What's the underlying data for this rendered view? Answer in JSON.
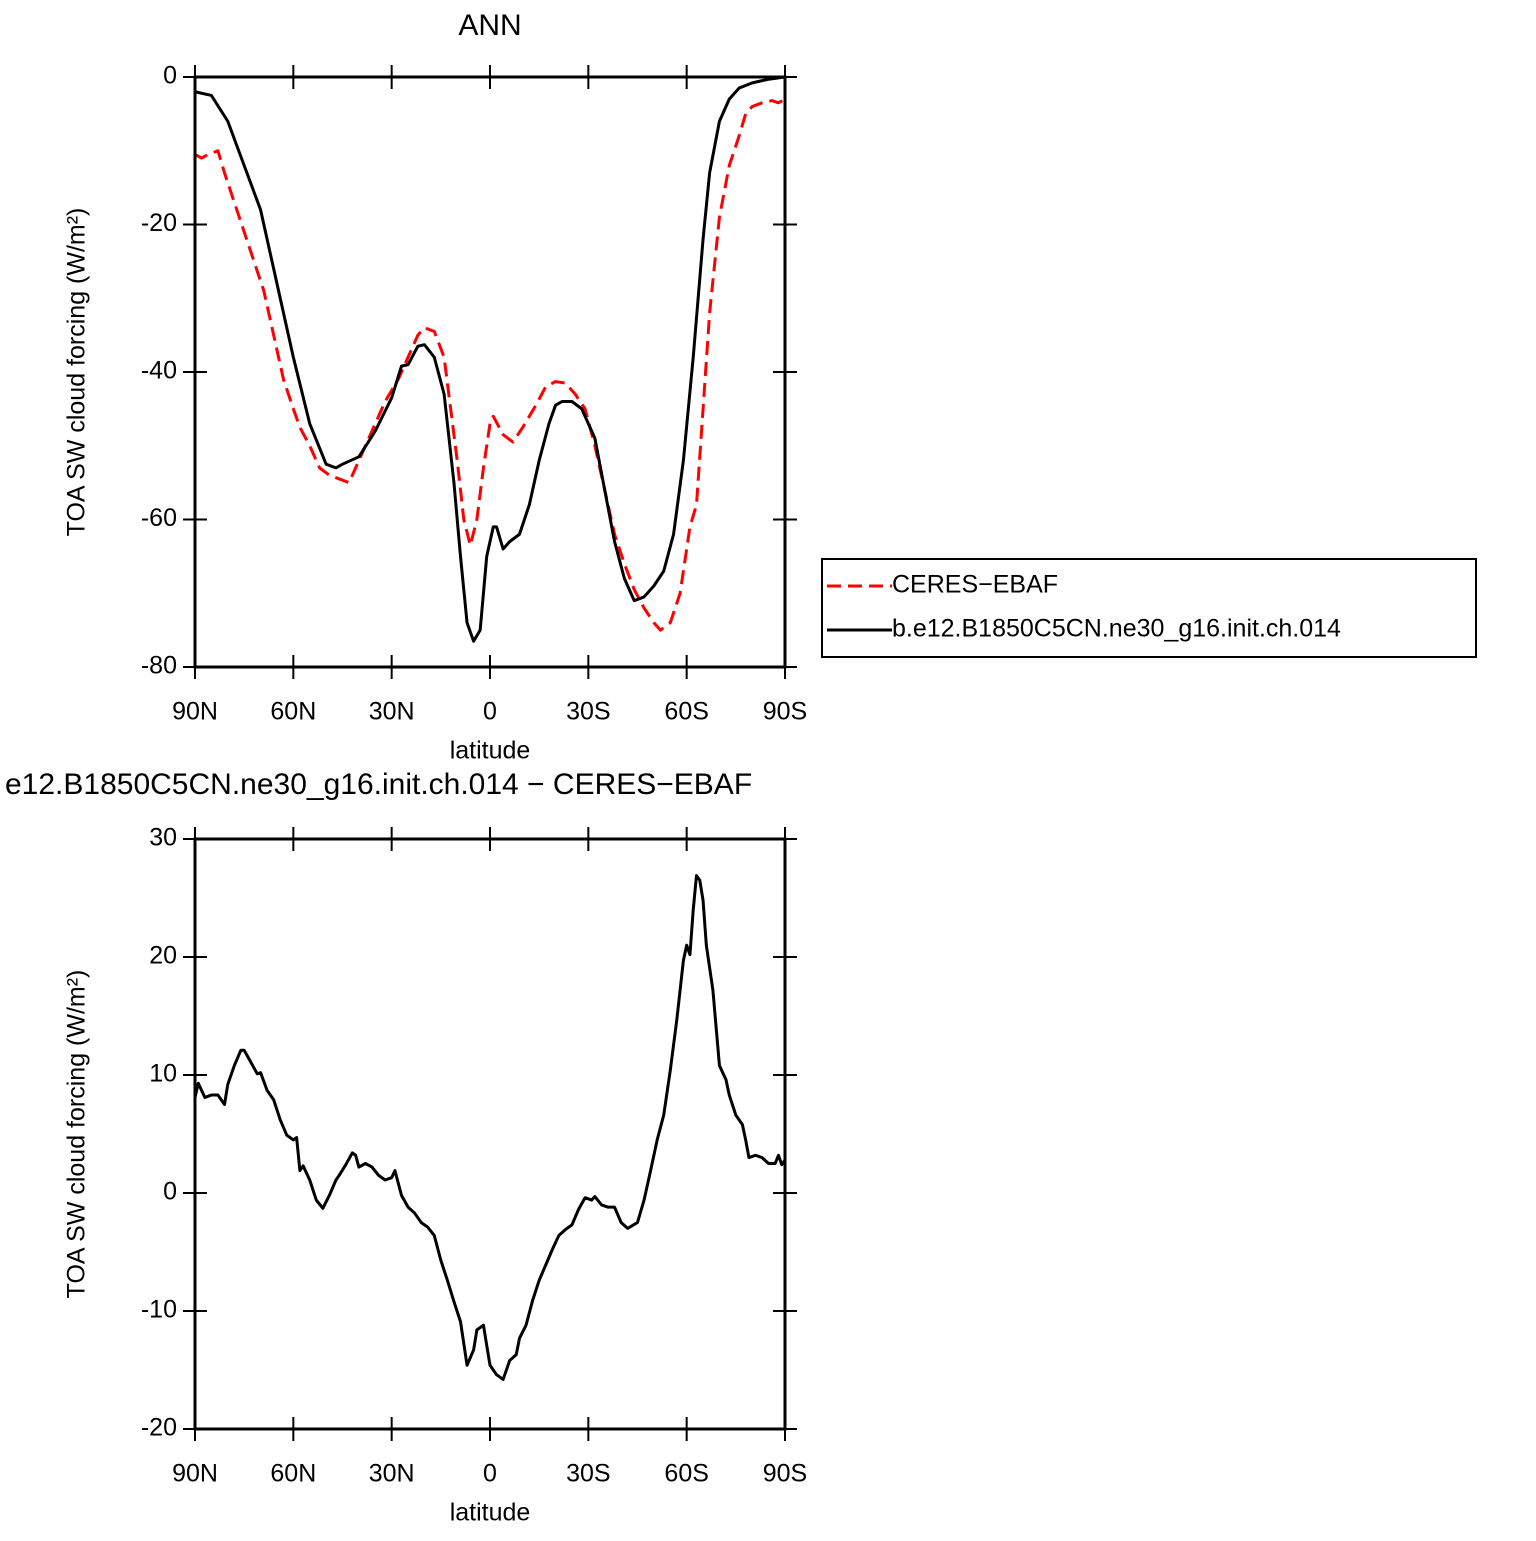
{
  "chart_data": [
    {
      "type": "line",
      "title": "ANN",
      "xlabel": "latitude",
      "ylabel": "TOA SW cloud forcing (W/m²)",
      "xlim": [
        90,
        -90
      ],
      "ylim": [
        -80,
        0
      ],
      "xticks": [
        {
          "value": 90,
          "label": "90N"
        },
        {
          "value": 60,
          "label": "60N"
        },
        {
          "value": 30,
          "label": "30N"
        },
        0,
        {
          "value": -30,
          "label": "30S"
        },
        {
          "value": -60,
          "label": "60S"
        },
        {
          "value": -90,
          "label": "90S"
        }
      ],
      "yticks": [
        -80,
        -60,
        -40,
        -20,
        0
      ],
      "legend": "right",
      "series": [
        {
          "name": "CERES−EBAF",
          "color": "#ff0000",
          "line_style": "dashed",
          "x": [
            90,
            88,
            86,
            83,
            81,
            78,
            75,
            72,
            69,
            66,
            63,
            60,
            58,
            55,
            52,
            49,
            46,
            43,
            40,
            36,
            32,
            28,
            25,
            22,
            20,
            17,
            14,
            12,
            10,
            8,
            6,
            4,
            2,
            0,
            -1,
            -4,
            -7,
            -10,
            -14,
            -17,
            -20,
            -23,
            -26,
            -29,
            -32,
            -35,
            -38,
            -41,
            -44,
            -47,
            -50,
            -52,
            -55,
            -58,
            -61,
            -63,
            -65,
            -67,
            -70,
            -73,
            -76,
            -78,
            -80,
            -83,
            -86,
            -88,
            -90
          ],
          "values": [
            -10.5,
            -11,
            -10.5,
            -10,
            -13,
            -17,
            -21,
            -25,
            -29,
            -35,
            -41,
            -45,
            -47.5,
            -50,
            -53,
            -54,
            -54.5,
            -55,
            -52,
            -48,
            -44,
            -41,
            -38,
            -35,
            -34,
            -34.5,
            -38,
            -45,
            -52,
            -60,
            -63.5,
            -60,
            -53,
            -47,
            -46,
            -48.5,
            -49.5,
            -47.5,
            -44.5,
            -42,
            -41.3,
            -41.5,
            -43,
            -45,
            -50,
            -56,
            -62,
            -66,
            -69.5,
            -72,
            -74,
            -75,
            -74,
            -70,
            -61,
            -58,
            -45,
            -32,
            -19,
            -12,
            -8,
            -5,
            -4,
            -3.5,
            -3.2,
            -3.5,
            -3
          ]
        },
        {
          "name": "b.e12.B1850C5CN.ne30_g16.init.ch.014",
          "color": "#000000",
          "line_style": "solid",
          "x": [
            90,
            85,
            80,
            75,
            70,
            65,
            60,
            55,
            50,
            47,
            45,
            40,
            35,
            30,
            27,
            25,
            22,
            20,
            17,
            14,
            11,
            9,
            7,
            5,
            3,
            1,
            -1,
            -2,
            -4,
            -6,
            -9,
            -12,
            -15,
            -18,
            -20,
            -22,
            -25,
            -28,
            -32,
            -35,
            -38,
            -41,
            -44,
            -47,
            -50,
            -53,
            -56,
            -59,
            -62,
            -65,
            -67,
            -70,
            -73,
            -76,
            -80,
            -85,
            -90
          ],
          "values": [
            -2,
            -2.5,
            -6,
            -12,
            -18,
            -28,
            -38,
            -47,
            -52.5,
            -53,
            -52.5,
            -51.5,
            -48,
            -43.5,
            -39.2,
            -39,
            -36.5,
            -36.3,
            -38,
            -43,
            -55,
            -65,
            -74,
            -76.5,
            -75,
            -65,
            -61,
            -61,
            -64,
            -63,
            -62,
            -58,
            -52,
            -47,
            -44.5,
            -44,
            -44,
            -45,
            -49,
            -56,
            -63,
            -68,
            -71,
            -70.5,
            -69,
            -67,
            -62,
            -52,
            -38,
            -22,
            -13,
            -6,
            -3,
            -1.5,
            -0.8,
            -0.3,
            0
          ]
        }
      ]
    },
    {
      "type": "line",
      "title": "e12.B1850C5CN.ne30_g16.init.ch.014 − CERES−EBAF",
      "xlabel": "latitude",
      "ylabel": "TOA SW cloud forcing (W/m²)",
      "xlim": [
        90,
        -90
      ],
      "ylim": [
        -20,
        30
      ],
      "xticks": [
        {
          "value": 90,
          "label": "90N"
        },
        {
          "value": 60,
          "label": "60N"
        },
        {
          "value": 30,
          "label": "30N"
        },
        0,
        {
          "value": -30,
          "label": "30S"
        },
        {
          "value": -60,
          "label": "60S"
        },
        {
          "value": -90,
          "label": "90S"
        }
      ],
      "yticks": [
        -20,
        -10,
        0,
        10,
        20,
        30
      ],
      "color": "#000000",
      "x": [
        90,
        89,
        87,
        85,
        83,
        81,
        80,
        78,
        76,
        75,
        73,
        71,
        70,
        68,
        66,
        64,
        62,
        60,
        59,
        58,
        57,
        55,
        53,
        51,
        49,
        47,
        46,
        44,
        42,
        41,
        40,
        38,
        36,
        34,
        32,
        30,
        29,
        27,
        25,
        23,
        21,
        19,
        17,
        15,
        13,
        11,
        9,
        7,
        5,
        4,
        2,
        1,
        0,
        -2,
        -4,
        -6,
        -8,
        -9,
        -11,
        -13,
        -15,
        -17,
        -19,
        -21,
        -23,
        -25,
        -27,
        -29,
        -31,
        -32,
        -34,
        -36,
        -38,
        -40,
        -42,
        -45,
        -47,
        -49,
        -51,
        -53,
        -55,
        -57,
        -59,
        -60,
        -61,
        -62,
        -63,
        -64,
        -65,
        -66,
        -68,
        -70,
        -72,
        -73,
        -75,
        -77,
        -78,
        -79,
        -81,
        -83,
        -85,
        -87,
        -88,
        -89,
        -90
      ],
      "values": [
        8.1,
        9.3,
        8.1,
        8.3,
        8.3,
        7.5,
        9.2,
        10.8,
        12.1,
        12.1,
        11.1,
        10.1,
        10.2,
        8.7,
        7.9,
        6.2,
        4.9,
        4.5,
        4.7,
        1.9,
        2.3,
        1.1,
        -0.6,
        -1.3,
        -0.2,
        1.1,
        1.5,
        2.4,
        3.4,
        3.2,
        2.2,
        2.5,
        2.2,
        1.5,
        1.1,
        1.3,
        1.9,
        -0.2,
        -1.2,
        -1.7,
        -2.5,
        -2.9,
        -3.6,
        -5.7,
        -7.4,
        -9.2,
        -10.9,
        -14.6,
        -13.3,
        -11.6,
        -11.2,
        -12.9,
        -14.6,
        -15.4,
        -15.8,
        -14.2,
        -13.7,
        -12.3,
        -11.2,
        -9.1,
        -7.4,
        -6.1,
        -4.8,
        -3.6,
        -3.1,
        -2.7,
        -1.4,
        -0.4,
        -0.6,
        -0.3,
        -1.0,
        -1.2,
        -1.2,
        -2.5,
        -3.0,
        -2.5,
        -0.6,
        1.9,
        4.5,
        6.6,
        10.4,
        14.7,
        19.7,
        21.0,
        20.2,
        24.0,
        26.9,
        26.5,
        24.8,
        21.0,
        17.2,
        10.8,
        9.6,
        8.3,
        6.6,
        5.8,
        4.5,
        3.0,
        3.2,
        3.0,
        2.5,
        2.5,
        3.2,
        2.4,
        2.8
      ]
    }
  ]
}
